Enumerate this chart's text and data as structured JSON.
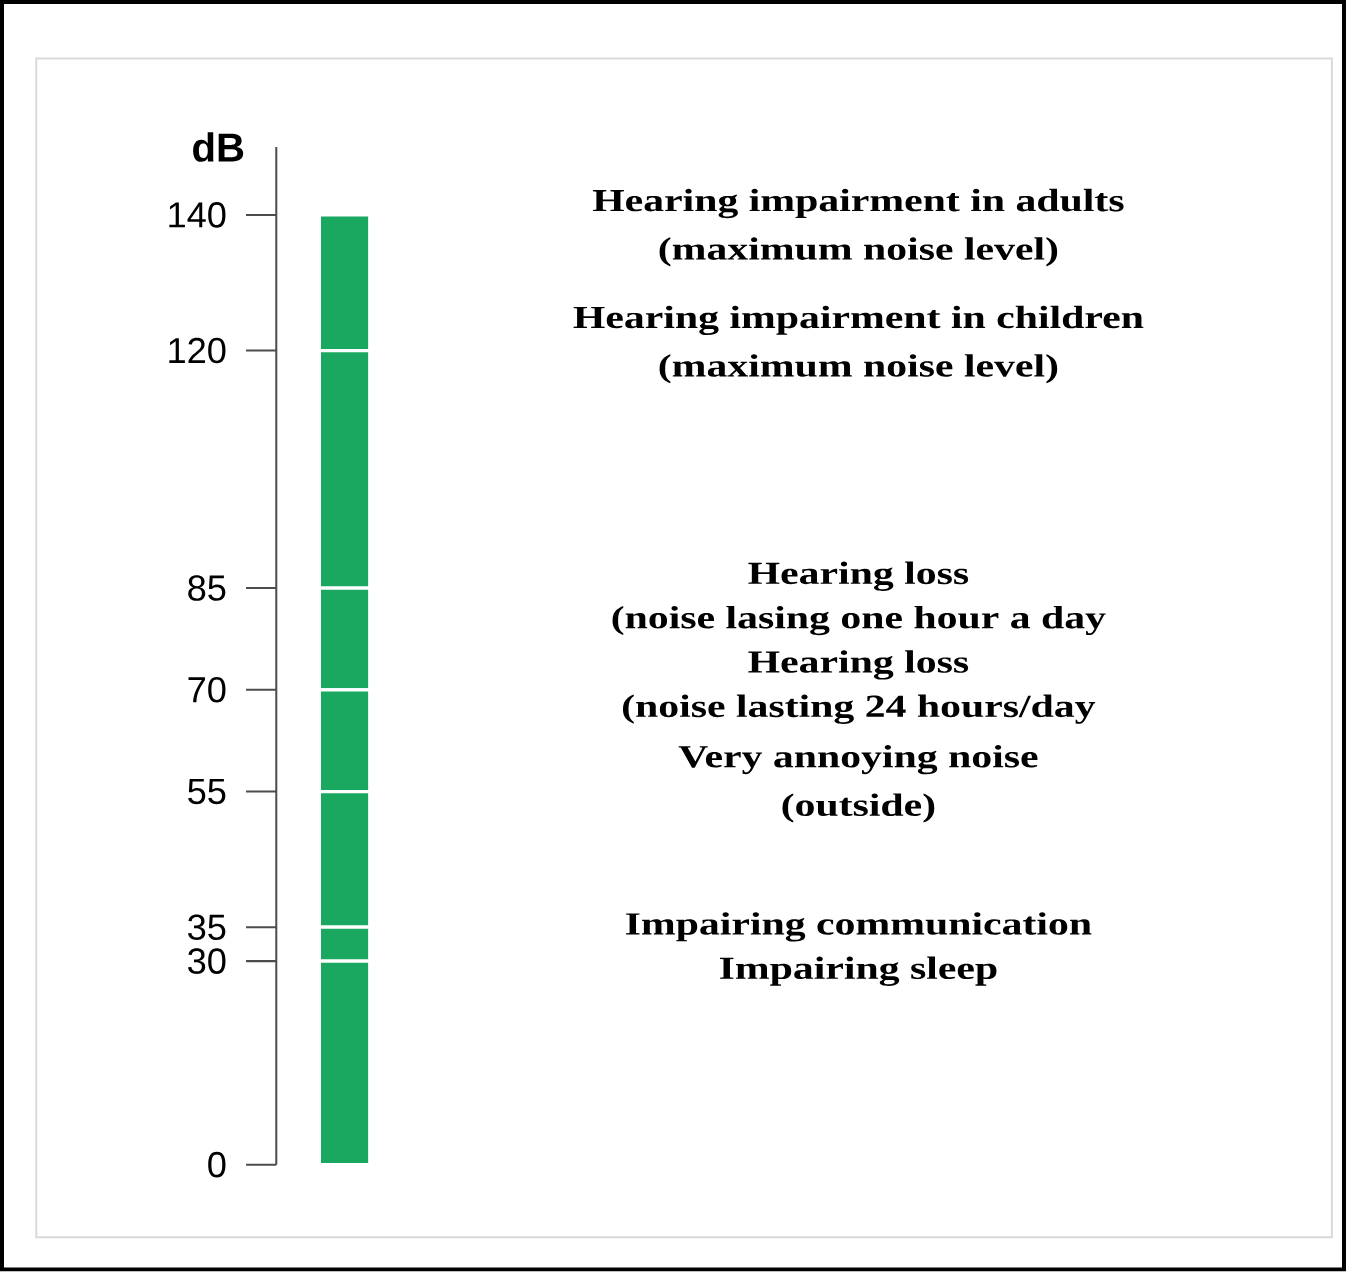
{
  "chart_data": {
    "type": "bar",
    "stacked": true,
    "ylabel": "dB",
    "categories": [
      null
    ],
    "series": [
      {
        "color": "#1aa760",
        "values": [
          30
        ]
      },
      {
        "color": "#1aa760",
        "values": [
          5
        ]
      },
      {
        "color": "#1aa760",
        "values": [
          20
        ]
      },
      {
        "color": "#1aa760",
        "values": [
          15
        ]
      },
      {
        "color": "#1aa760",
        "values": [
          15
        ]
      },
      {
        "color": "#1aa760",
        "values": [
          35
        ]
      },
      {
        "color": "#1aa760",
        "values": [
          20
        ]
      }
    ],
    "ylim": [
      0,
      150
    ],
    "yticks": [
      0,
      30,
      35,
      55,
      70,
      85,
      120,
      140
    ],
    "annotations": [
      "Hearing impairment in adults",
      "(maximum noise level)",
      "Hearing impairment in children",
      "(maximum noise level)",
      "Hearing loss",
      "(noise lasing one hour a day",
      "Hearing loss",
      "(noise lasting 24 hours/day",
      "Very annoying noise",
      "(outside)",
      "Impairing communication",
      "Impairing sleep"
    ]
  }
}
